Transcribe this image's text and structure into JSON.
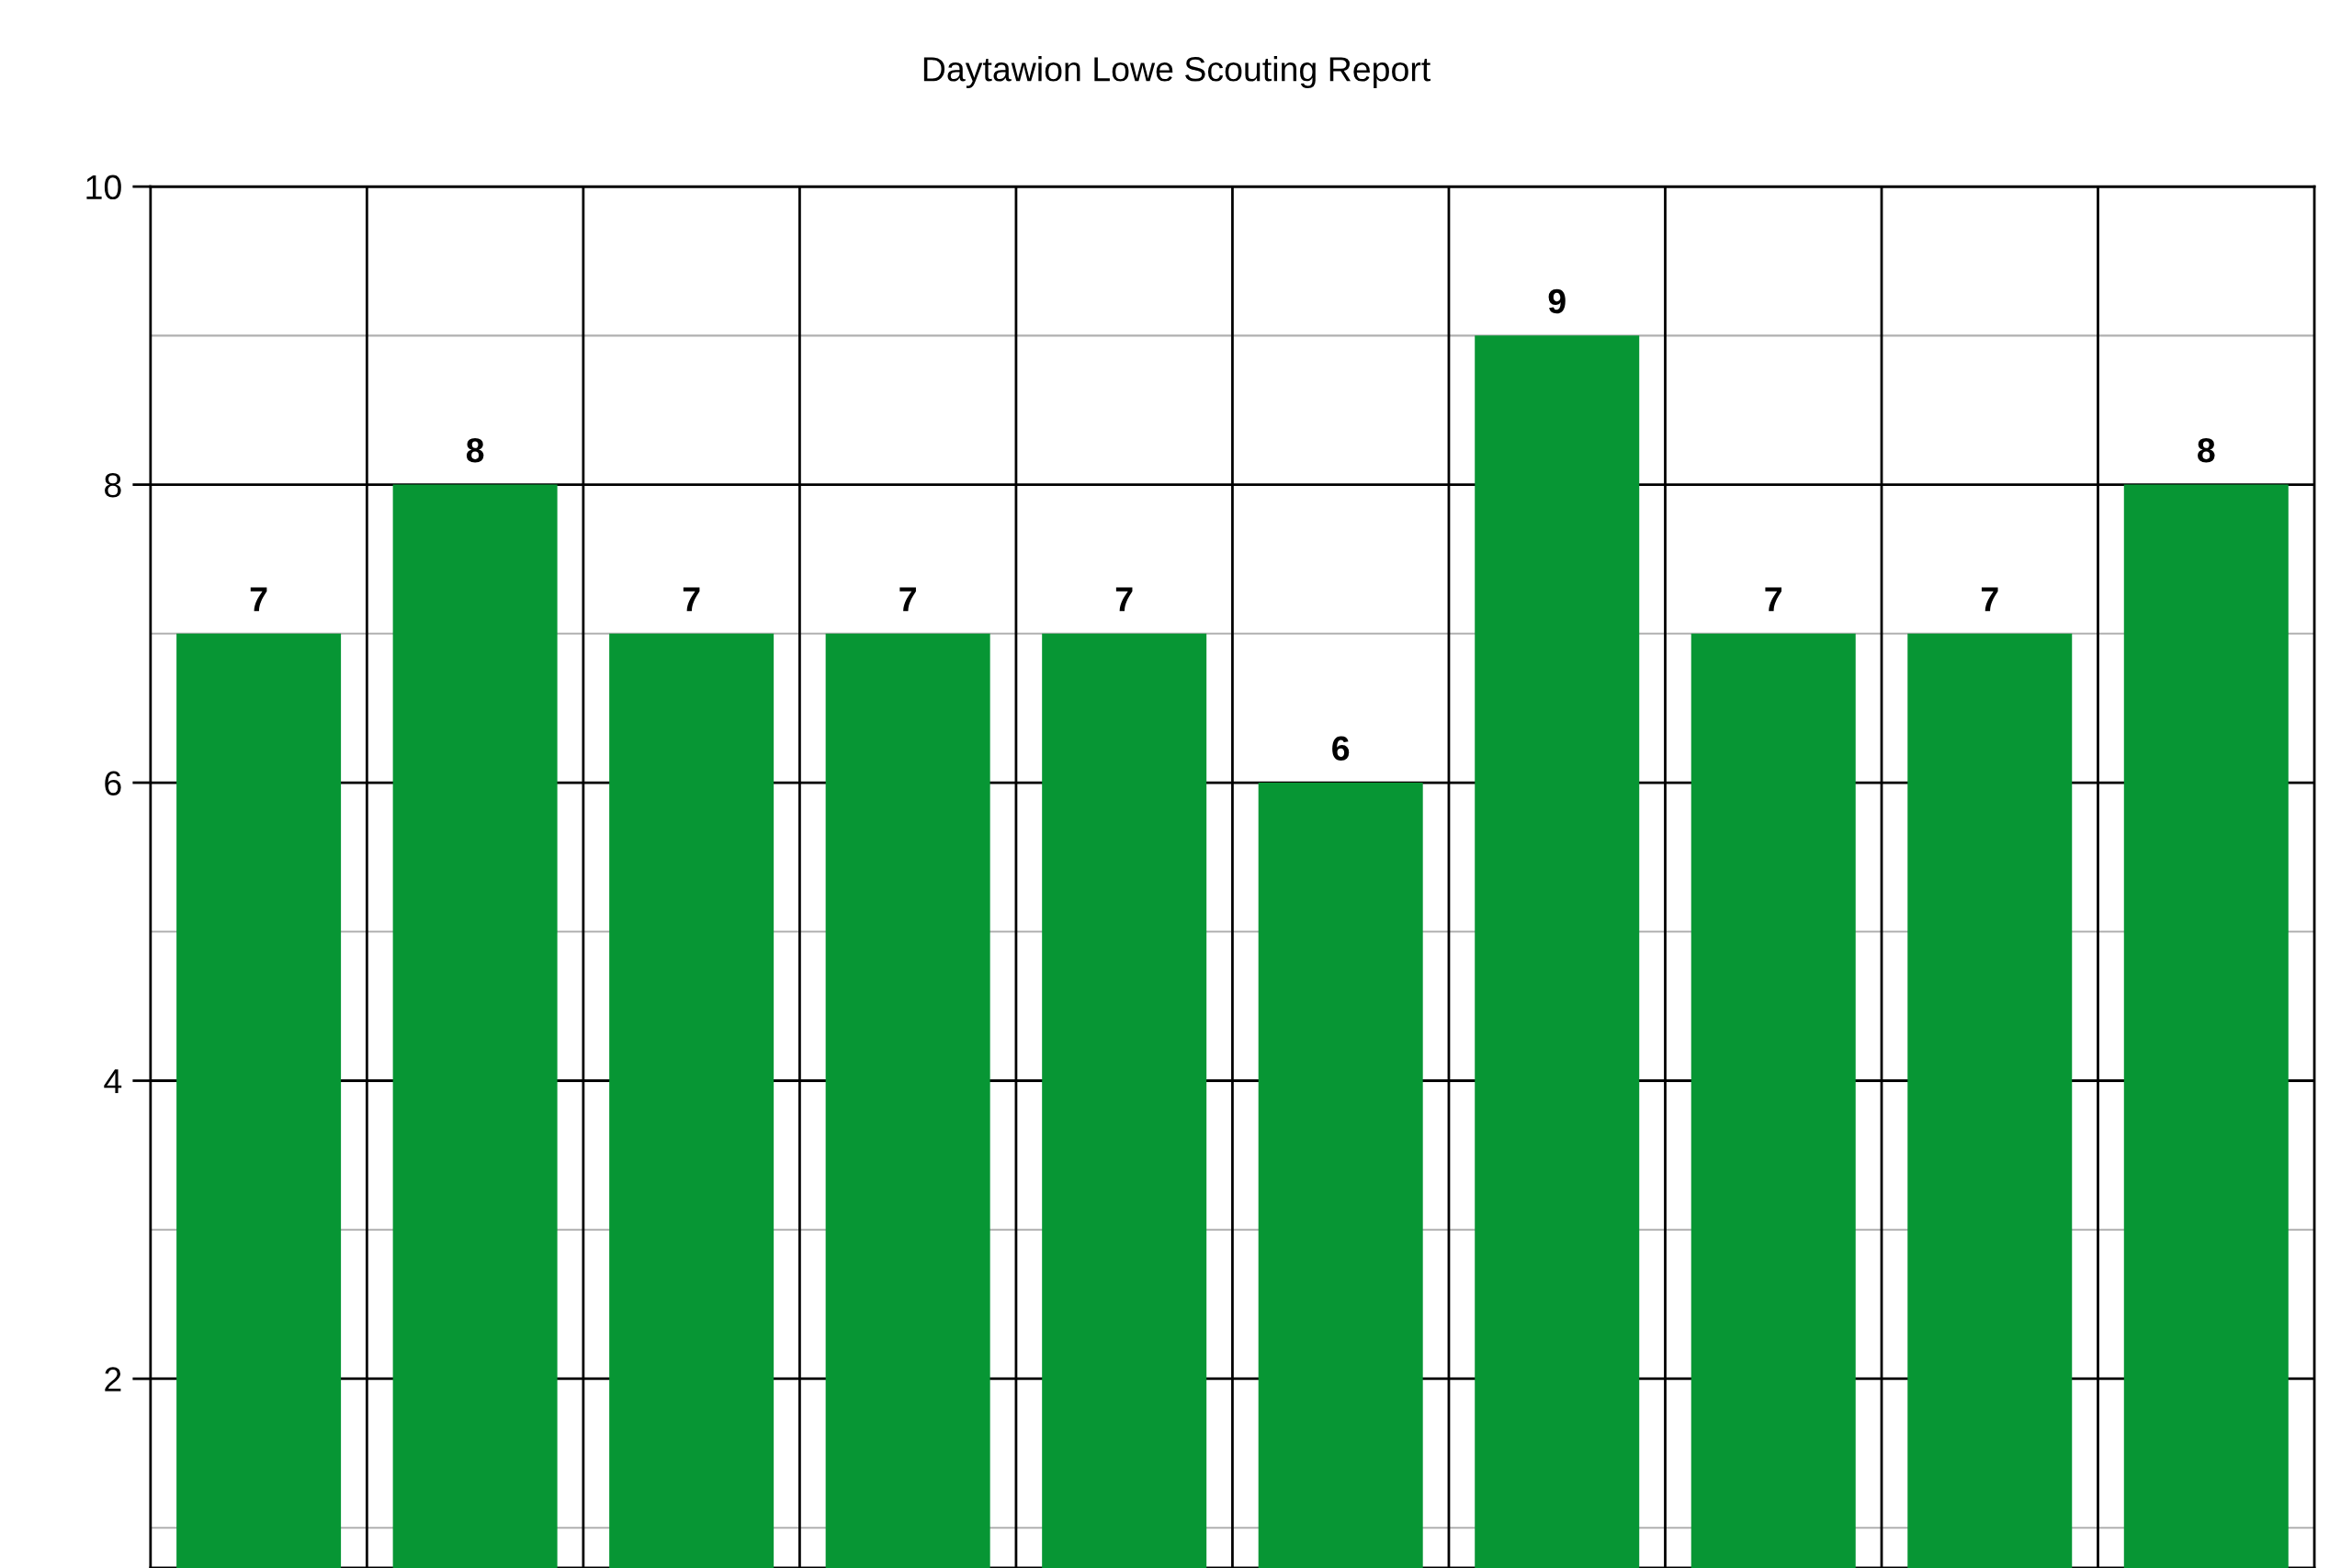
{
  "chart_data": {
    "type": "bar",
    "title": "Daytawion Lowe Scouting Report",
    "categories": [
      null,
      null,
      null,
      null,
      null,
      null,
      null,
      null,
      null,
      null
    ],
    "values": [
      7,
      8,
      7,
      7,
      7,
      6,
      9,
      7,
      7,
      8
    ],
    "color": "#079634",
    "ylim": [
      0.73,
      10
    ],
    "yticks": [
      {
        "value": 1,
        "label": null
      },
      2,
      {
        "value": 3,
        "label": null
      },
      4,
      {
        "value": 5,
        "label": null
      },
      6,
      {
        "value": 7,
        "label": null
      },
      8,
      {
        "value": 9,
        "label": null
      },
      10
    ],
    "grid": true,
    "data_labels": true
  }
}
